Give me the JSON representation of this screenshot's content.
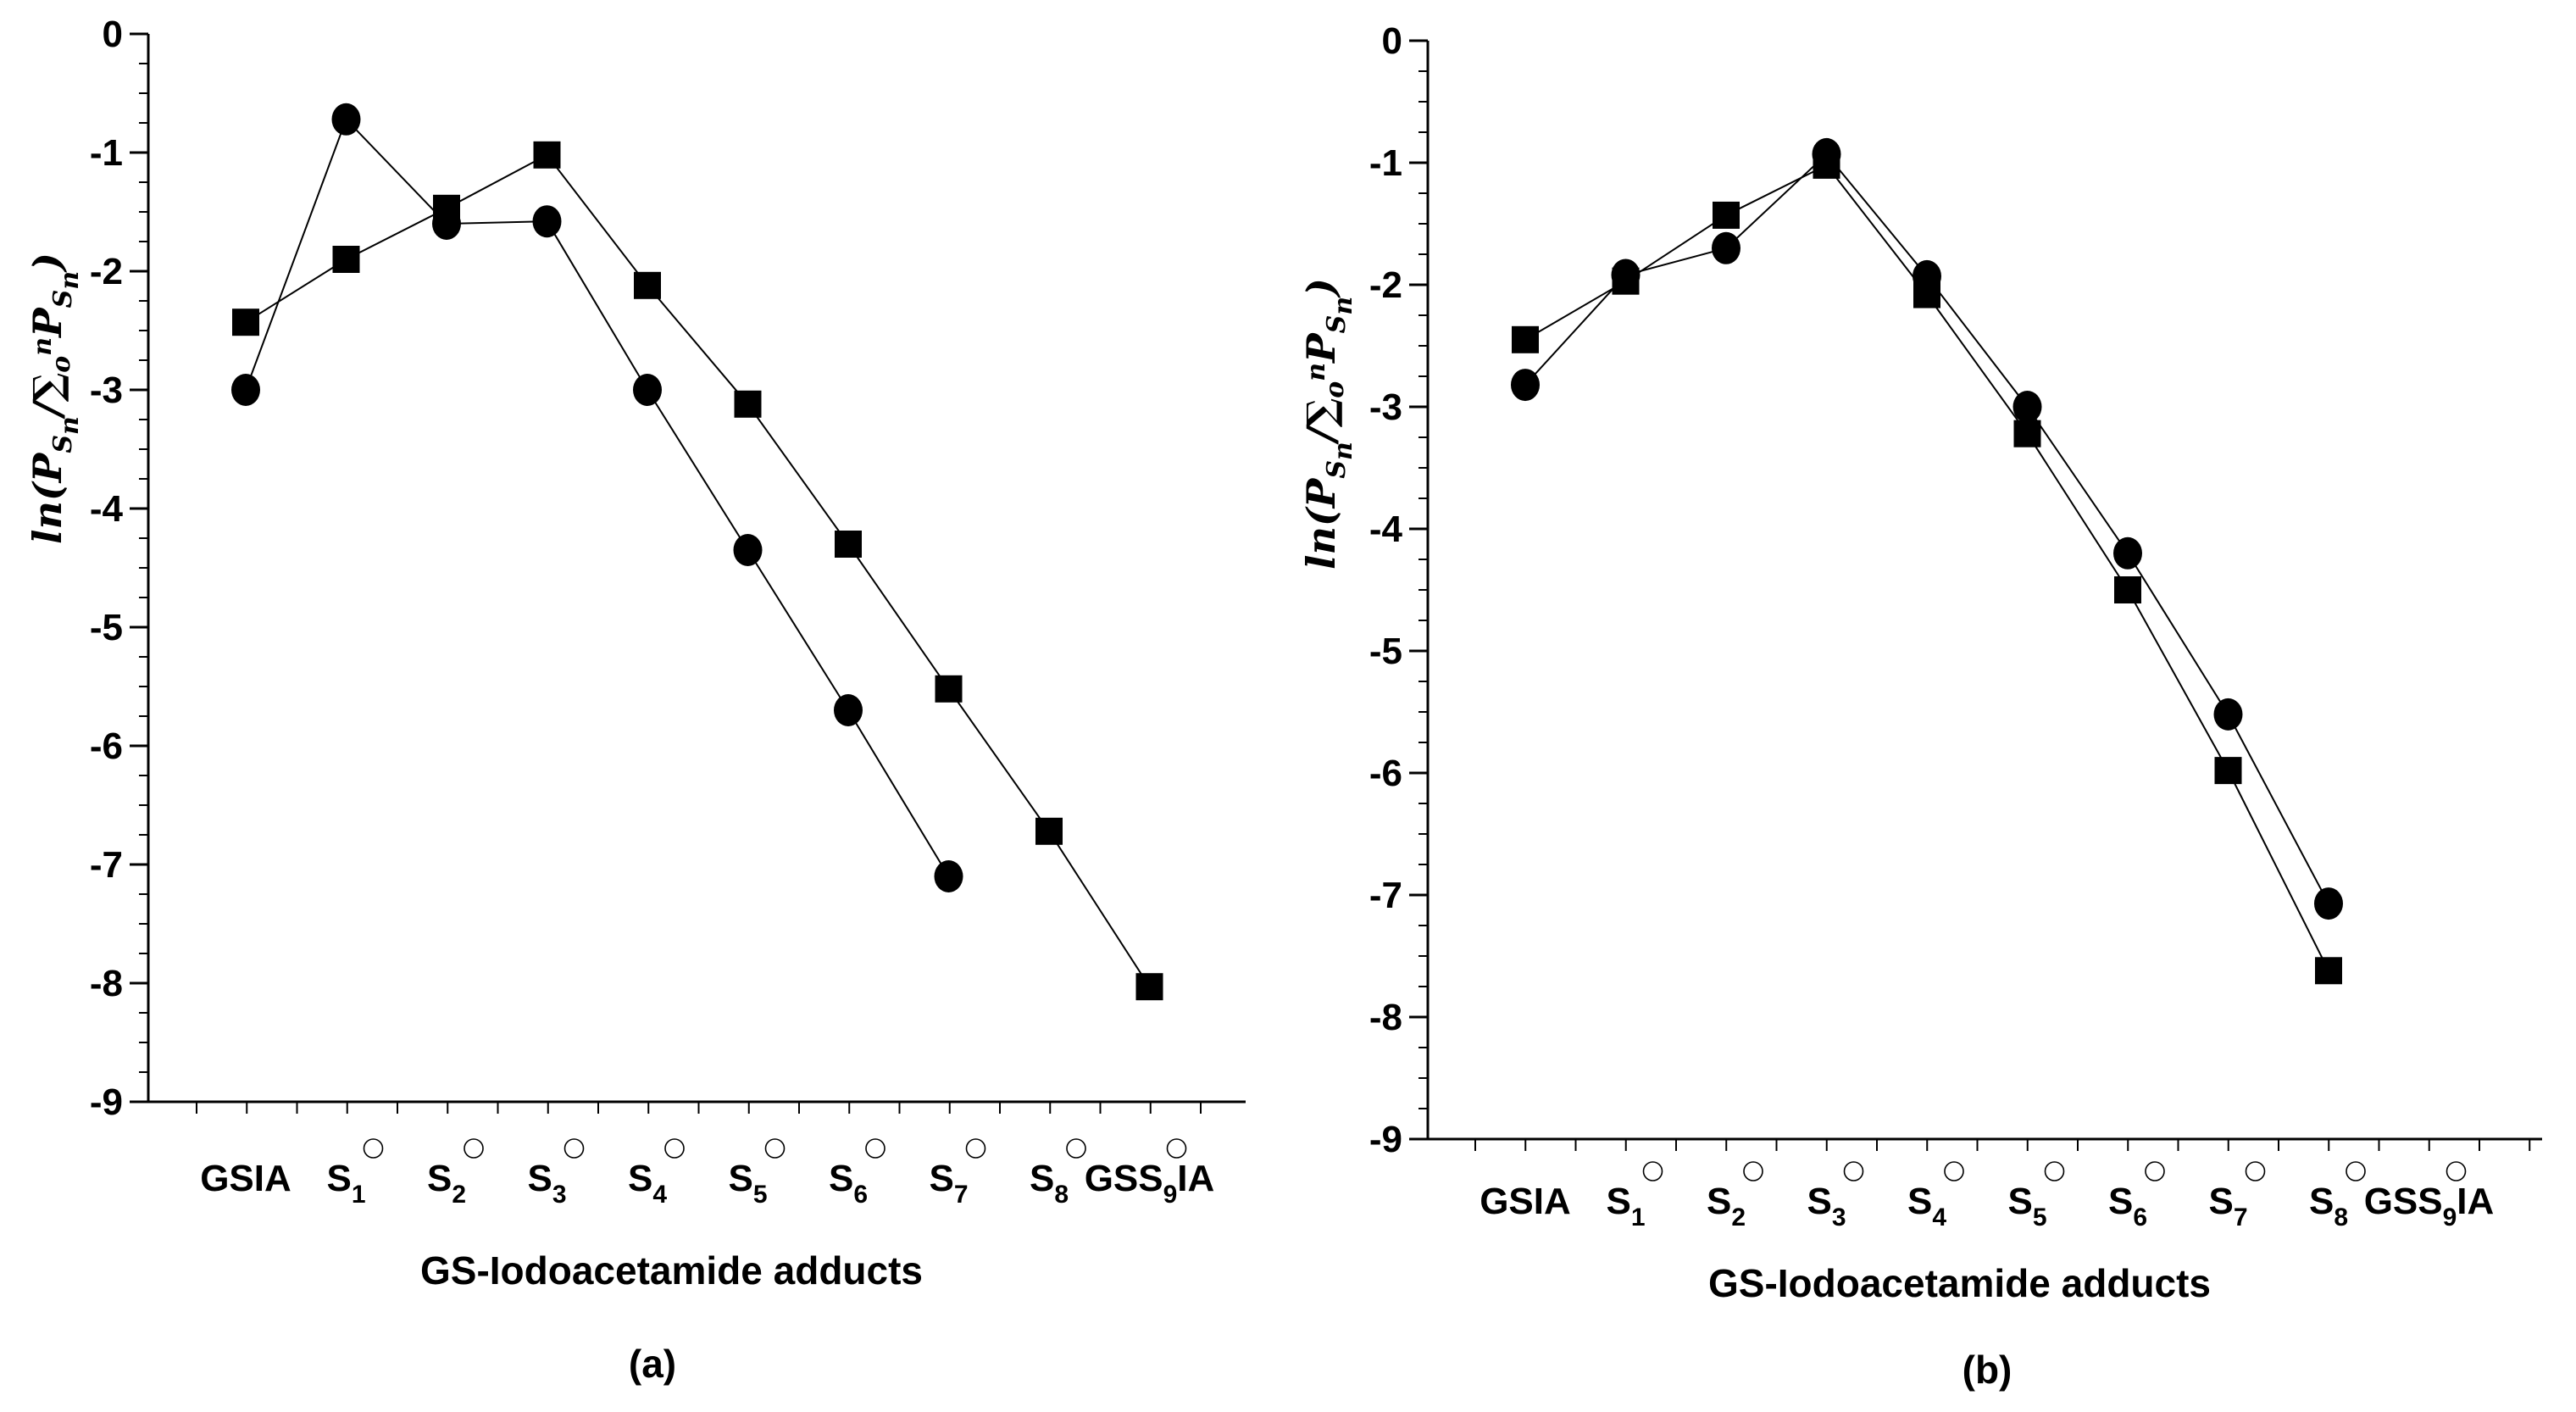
{
  "chart_data": [
    {
      "panel": "(a)",
      "type": "line",
      "xlabel": "GS-Iodoacetamide adducts",
      "ylabel": {
        "prefix": "ln(",
        "p1": "P",
        "s1": "S",
        "s1sub": "n",
        "slash": "/∑",
        "sumsub": "o",
        "sumsup": "n",
        "p2": "P",
        "s2": "S",
        "s2sub": "n",
        "suffix": ")"
      },
      "ylim": [
        -9,
        0
      ],
      "yticks": [
        "0",
        "-1",
        "-2",
        "-3",
        "-4",
        "-5",
        "-6",
        "-7",
        "-8",
        "-9"
      ],
      "categories": [
        {
          "main": "GSIA",
          "sub": "",
          "tail": ""
        },
        {
          "main": "S",
          "sub": "1",
          "tail": ""
        },
        {
          "main": "S",
          "sub": "2",
          "tail": ""
        },
        {
          "main": "S",
          "sub": "3",
          "tail": ""
        },
        {
          "main": "S",
          "sub": "4",
          "tail": ""
        },
        {
          "main": "S",
          "sub": "5",
          "tail": ""
        },
        {
          "main": "S",
          "sub": "6",
          "tail": ""
        },
        {
          "main": "S",
          "sub": "7",
          "tail": ""
        },
        {
          "main": "S",
          "sub": "8",
          "tail": ""
        },
        {
          "main": "GSS",
          "sub": "9",
          "tail": "IA"
        }
      ],
      "series": [
        {
          "name": "squares",
          "marker": "square",
          "values": [
            -2.43,
            -1.9,
            -1.47,
            -1.02,
            -2.12,
            -3.12,
            -4.3,
            -5.52,
            -6.72,
            -8.03
          ]
        },
        {
          "name": "circles",
          "marker": "circle",
          "values": [
            -3.0,
            -0.72,
            -1.6,
            -1.58,
            -3.0,
            -4.35,
            -5.7,
            -7.1,
            null,
            null
          ]
        }
      ]
    },
    {
      "panel": "(b)",
      "type": "line",
      "xlabel": "GS-Iodoacetamide adducts",
      "ylabel": {
        "prefix": "ln(",
        "p1": "P",
        "s1": "S",
        "s1sub": "n",
        "slash": "/∑",
        "sumsub": "o",
        "sumsup": "n",
        "p2": "P",
        "s2": "S",
        "s2sub": "n",
        "suffix": ")"
      },
      "ylim": [
        -9,
        0
      ],
      "yticks": [
        "0",
        "-1",
        "-2",
        "-3",
        "-4",
        "-5",
        "-6",
        "-7",
        "-8",
        "-9"
      ],
      "categories": [
        {
          "main": "GSIA",
          "sub": "",
          "tail": ""
        },
        {
          "main": "S",
          "sub": "1",
          "tail": ""
        },
        {
          "main": "S",
          "sub": "2",
          "tail": ""
        },
        {
          "main": "S",
          "sub": "3",
          "tail": ""
        },
        {
          "main": "S",
          "sub": "4",
          "tail": ""
        },
        {
          "main": "S",
          "sub": "5",
          "tail": ""
        },
        {
          "main": "S",
          "sub": "6",
          "tail": ""
        },
        {
          "main": "S",
          "sub": "7",
          "tail": ""
        },
        {
          "main": "S",
          "sub": "8",
          "tail": ""
        },
        {
          "main": "GSS",
          "sub": "9",
          "tail": "IA"
        }
      ],
      "series": [
        {
          "name": "squares",
          "marker": "square",
          "values": [
            -2.45,
            -1.97,
            -1.43,
            -1.02,
            -2.08,
            -3.22,
            -4.5,
            -5.98,
            -7.62,
            null
          ]
        },
        {
          "name": "circles",
          "marker": "circle",
          "values": [
            -2.82,
            -1.92,
            -1.7,
            -0.93,
            -1.93,
            -3.0,
            -4.2,
            -5.52,
            -7.07,
            null
          ]
        }
      ]
    }
  ]
}
